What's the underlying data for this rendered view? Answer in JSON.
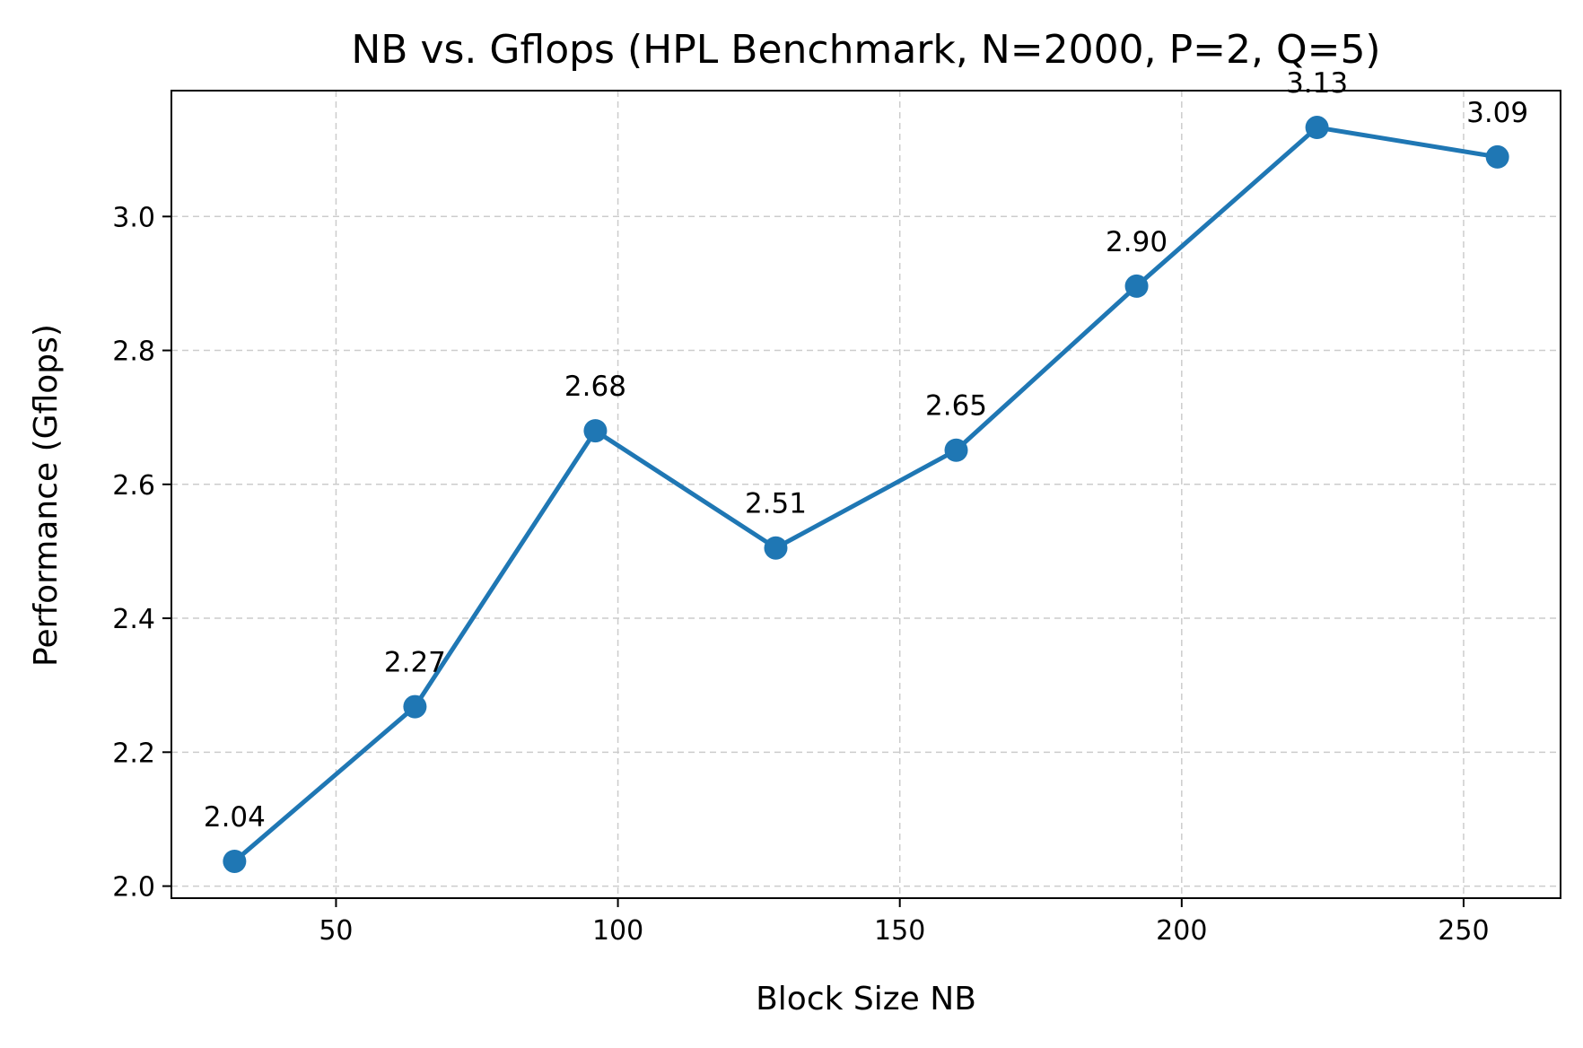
{
  "chart_data": {
    "type": "line",
    "title": "NB vs. Gflops (HPL Benchmark, N=2000, P=2, Q=5)",
    "xlabel": "Block Size NB",
    "ylabel": "Performance (Gflops)",
    "x": [
      32,
      64,
      96,
      128,
      160,
      192,
      224,
      256
    ],
    "series": [
      {
        "values": [
          2.037,
          2.268,
          2.68,
          2.505,
          2.651,
          2.896,
          3.133,
          3.089
        ],
        "labels": [
          "2.04",
          "2.27",
          "2.68",
          "2.51",
          "2.65",
          "2.90",
          "3.13",
          "3.09"
        ],
        "color": "#1f77b4",
        "marker": "circle"
      }
    ],
    "xlim": [
      20.8,
      267.2
    ],
    "ylim": [
      1.982,
      3.188
    ],
    "xticks": [
      50,
      100,
      150,
      200,
      250
    ],
    "xtick_labels": [
      "50",
      "100",
      "150",
      "200",
      "250"
    ],
    "yticks": [
      2.0,
      2.2,
      2.4,
      2.6,
      2.8,
      3.0
    ],
    "ytick_labels": [
      "2.0",
      "2.2",
      "2.4",
      "2.6",
      "2.8",
      "3.0"
    ],
    "grid": true,
    "grid_style": "dashed",
    "legend": "none"
  }
}
